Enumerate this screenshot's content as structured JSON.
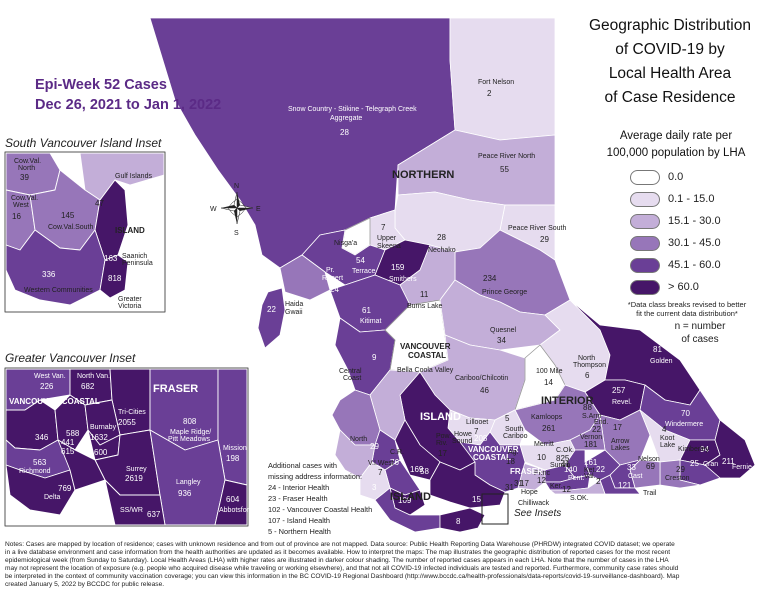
{
  "header": {
    "epi_week": "Epi-Week 52 Cases",
    "date_range": "Dec 26, 2021 to Jan 1, 2022"
  },
  "title": {
    "lines": [
      "Geographic Distribution",
      "of COVID-19 by",
      "Local Health Area",
      "of Case Residence"
    ],
    "subtitle_lines": [
      "Average daily rate per",
      "100,000 population by LHA"
    ]
  },
  "legend": {
    "classes": [
      {
        "label": "0.0",
        "color": "#ffffff"
      },
      {
        "label": "0.1 - 15.0",
        "color": "#e6dcef"
      },
      {
        "label": "15.1 - 30.0",
        "color": "#c3aed8"
      },
      {
        "label": "30.1 - 45.0",
        "color": "#9776b9"
      },
      {
        "label": "45.1 - 60.0",
        "color": "#6a3f96"
      },
      {
        "label": "> 60.0",
        "color": "#461668"
      }
    ],
    "note": [
      "*Data class breaks revised to better",
      "fit the current data distribution*"
    ],
    "n_note": [
      "n = number",
      "of cases"
    ]
  },
  "insets": {
    "south_vi_title": "South Vancouver Island Inset",
    "greater_van_title": "Greater Vancouver Inset",
    "see_insets": "See Insets"
  },
  "health_authorities": {
    "northern": "NORTHERN",
    "interior": "INTERIOR",
    "vancouver_coastal": [
      "VANCOUVER",
      "COASTAL"
    ],
    "fraser": "FRASER",
    "island": "ISLAND",
    "island_main": "ISLAND",
    "island_inset": "ISLAND",
    "fraser_inset": "FRASER",
    "vch_inset": "VANCOUVER COASTAL",
    "vch_small": [
      "VANCOUVER",
      "COASTAL"
    ],
    "fraser_small": "FRASER"
  },
  "compass": {
    "n": "N",
    "s": "S",
    "e": "E",
    "w": "W"
  },
  "lha": {
    "fort_nelson": {
      "name": "Fort Nelson",
      "n": "2"
    },
    "snow_country": {
      "name": [
        "Snow Country - Stikine - Telegraph Creek",
        "Aggregate"
      ],
      "n": "28"
    },
    "peace_river_north": {
      "name": "Peace River North",
      "n": "55"
    },
    "peace_river_south": {
      "name": "Peace River South",
      "n": "29"
    },
    "nechako": {
      "name": "Nechako",
      "n": "28"
    },
    "upper_skeena": {
      "name": [
        "Upper",
        "Skeena"
      ],
      "n": "7"
    },
    "nisgaa": {
      "name": "Nisga'a",
      "n": ""
    },
    "terrace": {
      "name": "Terrace",
      "n": "54"
    },
    "pr_rupert": {
      "name": [
        "Pr.",
        "Rupert"
      ],
      "n": "24"
    },
    "smithers": {
      "name": "Smithers",
      "n": "159"
    },
    "burns_lake": {
      "name": "Burns Lake",
      "n": "11"
    },
    "prince_george": {
      "name": "Prince George",
      "n": "234"
    },
    "haida_gwaii": {
      "name": [
        "Haida",
        "Gwaii"
      ],
      "n": "22"
    },
    "kitimat": {
      "name": "Kitimat",
      "n": "61"
    },
    "central_coast": {
      "name": [
        "Central",
        "Coast"
      ],
      "n": "9"
    },
    "bella_coola": {
      "name": "Bella Coola Valley",
      "n": ""
    },
    "quesnel": {
      "name": "Quesnel",
      "n": "34"
    },
    "cariboo": {
      "name": "Cariboo/Chilcotin",
      "n": "46"
    },
    "mile100": {
      "name": "100 Mile",
      "n": "14"
    },
    "north_thompson": {
      "name": [
        "North",
        "Thompson"
      ],
      "n": "6"
    },
    "golden": {
      "name": "Golden",
      "n": "81"
    },
    "revelstoke": {
      "name": "Revel.",
      "n": "257"
    },
    "windermere": {
      "name": "Windermere",
      "n": "70"
    },
    "kootenay_lake": {
      "name": [
        "Koot",
        "Lake"
      ],
      "n": "4"
    },
    "arrow_lakes": {
      "name": [
        "Arrow",
        "Lakes"
      ],
      "n": "17"
    },
    "kimberley": {
      "name": "Kimberley",
      "n": "94"
    },
    "cranbrook": {
      "name": "Cran",
      "n": "25"
    },
    "fernie": {
      "name": "Fernie",
      "n": "211"
    },
    "creston": {
      "name": "Creston",
      "n": "29"
    },
    "nelson": {
      "name": "Nelson",
      "n": "69"
    },
    "castlegar": {
      "name": "Cast",
      "n": "33"
    },
    "trail": {
      "name": "Trail",
      "n": "121"
    },
    "grand_forks": {
      "name": "",
      "n": "22"
    },
    "kamloops": {
      "name": "Kamloops",
      "n": "261"
    },
    "south_cariboo": {
      "name": [
        "South",
        "Cariboo"
      ],
      "n": "5"
    },
    "lillooet": {
      "name": "Lillooet",
      "n": "7"
    },
    "merritt": {
      "name": "Merritt",
      "n": "10"
    },
    "salmon_arm": {
      "name": "S.Arm",
      "n": "88"
    },
    "enderby": {
      "name": "End.",
      "n": "22"
    },
    "vernon": {
      "name": "Vernon",
      "n": "181"
    },
    "central_okanagan": {
      "name": "C.Ok.",
      "n": "825"
    },
    "penticton": {
      "name": "Pent.",
      "n": "140"
    },
    "princeton": {
      "name": "Princ",
      "n": "12"
    },
    "keremeos": {
      "name": "Ker.",
      "n": ""
    },
    "summerland": {
      "name": "Summ.",
      "n": "41"
    },
    "south_okanagan": {
      "name": "S.OK.",
      "n": "12"
    },
    "kettle_valley": {
      "name": [
        "Ket.",
        "Val."
      ],
      "n": "2"
    },
    "okanagan_v": {
      "name": "",
      "n": "161"
    },
    "van_isl_north": {
      "name": "North",
      "n": "29"
    },
    "van_isl_west": {
      "name": "V.I.West",
      "n": "7"
    },
    "campbell_river": {
      "name": "C.R.",
      "n": "76"
    },
    "comox": {
      "name": "",
      "n": "169"
    },
    "howe_sound": {
      "name": [
        "Howe",
        "Sound"
      ],
      "n": "208"
    },
    "powell_river": {
      "name": [
        "Pow.",
        "Riv."
      ],
      "n": "17"
    },
    "sunshine_coast": {
      "name": "",
      "n": "58"
    },
    "fraser_canyon": {
      "name": "Ag.",
      "n": "18"
    },
    "hope": {
      "name": "Hope",
      "n": "17"
    },
    "chilliwack": {
      "name": "Chilliwack",
      "n": "31"
    },
    "alberni": {
      "name": "",
      "n": "3"
    },
    "nanaimo": {
      "name": "",
      "n": "109"
    },
    "cowichan": {
      "name": "",
      "n": "304"
    },
    "greater_vic": {
      "name": "",
      "n": "8"
    },
    "mission_main": {
      "name": "",
      "n": "15"
    },
    "cowval_north": {
      "name": [
        "Cow.Val.",
        "North"
      ],
      "n": "39"
    },
    "gulf_islands": {
      "name": "Gulf Islands",
      "n": "47"
    },
    "cowval_west": {
      "name": [
        "Cow.Val.",
        "West"
      ],
      "n": "16"
    },
    "cowval_south": {
      "name": "Cow.Val.South",
      "n": "145"
    },
    "saanich": {
      "name": [
        "Saanich",
        "Peninsula"
      ],
      "n": "163"
    },
    "western_comm": {
      "name": "Western Communities",
      "n": "336"
    },
    "greater_victoria": {
      "name": [
        "Greater",
        "Victoria"
      ],
      "n": "818"
    },
    "west_van": {
      "name": "West Van.",
      "n": "226"
    },
    "north_van": {
      "name": "North Van.",
      "n": "682"
    },
    "tri_cities": {
      "name": "Tri-Cities",
      "n": "2055"
    },
    "maple_ridge": {
      "name": [
        "Maple Ridge/",
        "Pitt Meadows"
      ],
      "n": "808"
    },
    "mission": {
      "name": "Mission",
      "n": "198"
    },
    "vancouver": {
      "name": "",
      "n": "346"
    },
    "burnaby": {
      "name": "Burnaby",
      "n": "1632"
    },
    "new_west": {
      "name": "",
      "n": "600"
    },
    "van_a": {
      "name": "",
      "n": "588"
    },
    "van_b": {
      "name": "",
      "n": "441"
    },
    "van_c": {
      "name": "",
      "n": "615"
    },
    "richmond": {
      "name": "Richmond",
      "n": "563"
    },
    "surrey": {
      "name": "Surrey",
      "n": "2619"
    },
    "langley": {
      "name": "Langley",
      "n": "936"
    },
    "abbotsford": {
      "name": "Abbotsford",
      "n": "604"
    },
    "delta": {
      "name": "Delta",
      "n": "769"
    },
    "ss_wr": {
      "name": "SS/WR",
      "n": "637"
    }
  },
  "additional_cases": {
    "lines": [
      "Additional cases with",
      "missing address information:",
      "24 - Interior Health",
      "23 -  Fraser Health",
      "102 - Vancouver Coastal Health",
      "107 - Island Health",
      "5 - Northern Health"
    ]
  },
  "footer": {
    "lines": [
      "Notes: Cases are mapped by location of residence; cases with unknown residence and from out of province are not mapped. Data source: Public Health Reporting Data Warehouse (PHRDW) integrated COVID dataset; we operate",
      "in a live database environment and case information from the health authorities are updated as it becomes available. How to interpret the maps: The map illustrates the geographic distribution of reported cases for the most recent",
      "epidemiological week (from Sunday to Saturday). Local Health Areas (LHA) with higher rates are illustrated in darker colour shading. The number of reported cases appears in each LHA. Note that the number of cases in the LHA",
      "may not represent the location of exposure (e.g. people who acquired disease while traveling or working elsewhere), and that not all COVID-19 infected individuals are tested and reported. Furthermore, community case rates should",
      "be interpreted in the context of community vaccination coverage; you can view this information in the BC COVID-19 Regional Dashboard (http://www.bccdc.ca/health-professionals/data-reports/covid-19-surveillance-dashboard). Map",
      "created January 5, 2022 by BCCDC for public release."
    ]
  }
}
